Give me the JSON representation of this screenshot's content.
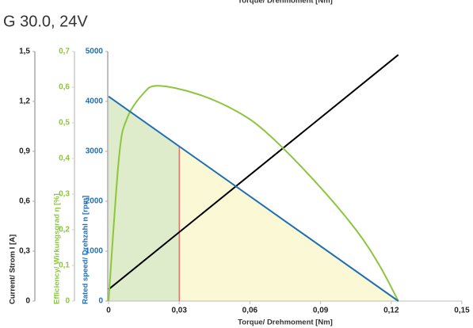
{
  "chart_data": {
    "type": "line",
    "title": "G 30.0, 24V",
    "xlabel": "Torque/ Drehmoment [Nm]",
    "ylabel": "Current/ Strom I [A]",
    "y2label": "Efficiency/ Wirkungsgrad η [%]",
    "y3label": "Rated speed/ Drehzahl n [rpm]",
    "xlim": [
      0,
      0.15
    ],
    "xticks": [
      0,
      {
        "value": 0.03,
        "label": "0,03"
      },
      {
        "value": 0.06,
        "label": "0,06"
      },
      {
        "value": 0.09,
        "label": "0,09"
      },
      {
        "value": 0.12,
        "label": "0,12"
      },
      {
        "value": 0.15,
        "label": "0,15"
      }
    ],
    "ylim": [
      0,
      1.5
    ],
    "yticks": [
      0,
      {
        "value": 0.3,
        "label": "0,3"
      },
      {
        "value": 0.6,
        "label": "0,6"
      },
      {
        "value": 0.9,
        "label": "0,9"
      },
      {
        "value": 1.2,
        "label": "1,2"
      },
      {
        "value": 1.5,
        "label": "1,5"
      }
    ],
    "y2lim": [
      0,
      0.7
    ],
    "y2ticks": [
      0,
      {
        "value": 0.1,
        "label": "0,1"
      },
      {
        "value": 0.2,
        "label": "0,2"
      },
      {
        "value": 0.3,
        "label": "0,3"
      },
      {
        "value": 0.4,
        "label": "0,4"
      },
      {
        "value": 0.5,
        "label": "0,5"
      },
      {
        "value": 0.6,
        "label": "0,6"
      },
      {
        "value": 0.7,
        "label": "0,7"
      }
    ],
    "y3lim": [
      0,
      5000
    ],
    "y3ticks": [
      0,
      1000,
      2000,
      3000,
      4000,
      5000
    ],
    "rated_torque": 0.03,
    "series": [
      {
        "name": "Current",
        "color": "#000000",
        "axis": "y",
        "x": [
          0,
          0.123
        ],
        "values": [
          0.07,
          1.48
        ]
      },
      {
        "name": "Efficiency",
        "color": "#8cc63f",
        "axis": "y2",
        "x": [
          0,
          0.0044,
          0.0077,
          0.0145,
          0.021,
          0.038,
          0.055,
          0.068,
          0.088,
          0.105,
          0.115,
          0.123
        ],
        "values": [
          0,
          0.4,
          0.51,
          0.58,
          0.604,
          0.58,
          0.53,
          0.467,
          0.333,
          0.2,
          0.1,
          0
        ]
      },
      {
        "name": "Speed",
        "color": "#1f6fb5",
        "axis": "y3",
        "x": [
          0,
          0.123
        ],
        "values": [
          4100,
          0
        ]
      }
    ]
  }
}
